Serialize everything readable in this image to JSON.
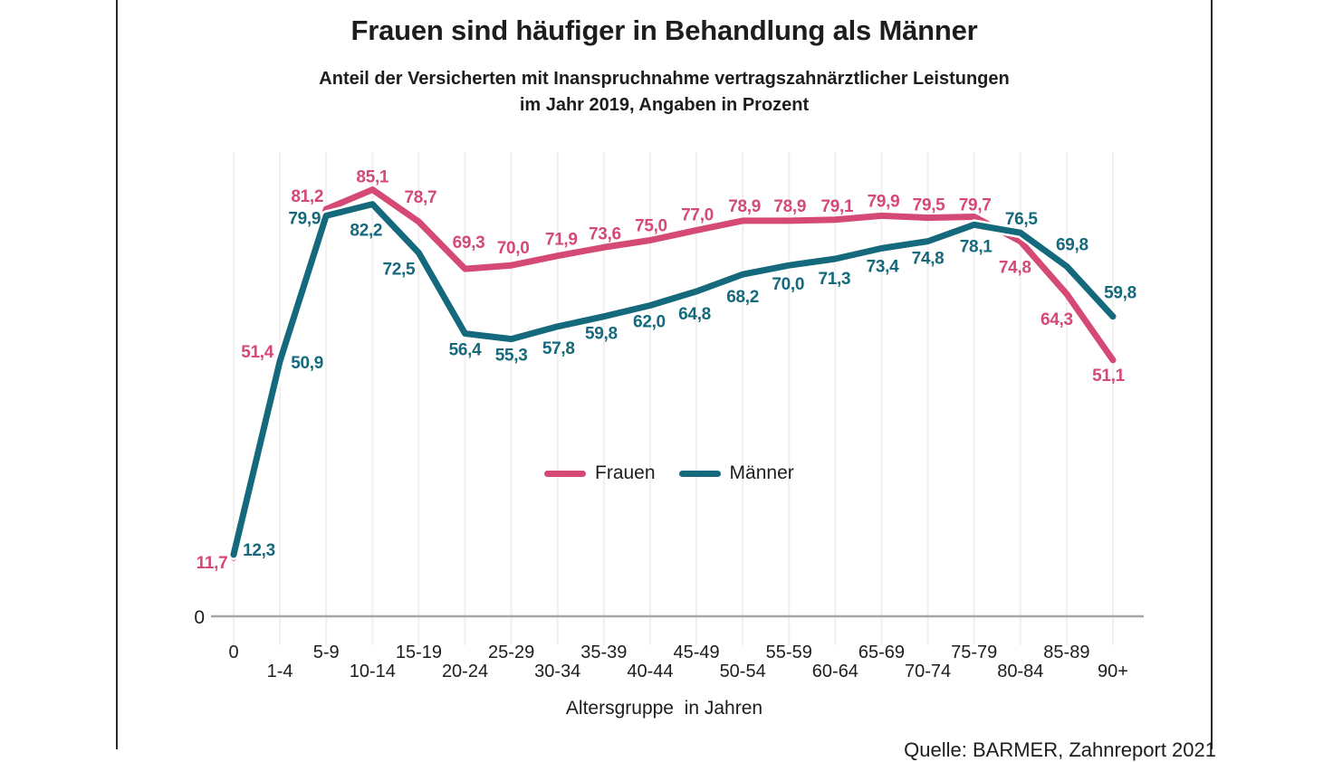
{
  "text": {
    "title": "Frauen sind häufiger in Behandlung als Männer",
    "subtitle_line1": "Anteil der Versicherten mit Inanspruchnahme vertragszahnärztlicher Leistungen",
    "subtitle_line2": "im Jahr 2019, Angaben in Prozent",
    "xaxis_label": "Altersgruppe  in Jahren",
    "source": "Quelle: BARMER, Zahnreport 2021"
  },
  "chart_data": {
    "type": "line",
    "title": "Frauen sind häufiger in Behandlung als Männer",
    "subtitle": "Anteil der Versicherten mit Inanspruchnahme vertragszahnärztlicher Leistungen im Jahr 2019, Angaben in Prozent",
    "categories": [
      "0",
      "1-4",
      "5-9",
      "10-14",
      "15-19",
      "20-24",
      "25-29",
      "30-34",
      "35-39",
      "40-44",
      "45-49",
      "50-54",
      "55-59",
      "60-64",
      "65-69",
      "70-74",
      "75-79",
      "80-84",
      "85-89",
      "90+"
    ],
    "series": [
      {
        "name": "Frauen",
        "color": "#d54975",
        "values": [
          11.7,
          51.4,
          81.2,
          85.1,
          78.7,
          69.3,
          70.0,
          71.9,
          73.6,
          75.0,
          77.0,
          78.9,
          78.9,
          79.1,
          79.9,
          79.5,
          79.7,
          74.8,
          64.3,
          51.1
        ]
      },
      {
        "name": "Männer",
        "color": "#15697c",
        "values": [
          12.3,
          50.9,
          79.9,
          82.2,
          72.5,
          56.4,
          55.3,
          57.8,
          59.8,
          62.0,
          64.8,
          68.2,
          70.0,
          71.3,
          73.4,
          74.8,
          78.1,
          76.5,
          69.8,
          59.8
        ]
      }
    ],
    "xlabel": "Altersgruppe  in Jahren",
    "ylabel": "",
    "ylim": [
      0,
      92
    ],
    "y_baseline_label": "0",
    "grid": "vertical-only",
    "legend_position": "center-middle",
    "value_labels": "every point, one decimal, comma as decimal separator",
    "source": "Quelle: BARMER, Zahnreport 2021",
    "colors": {
      "frauen": "#d54975",
      "maenner": "#15697c",
      "axis": "#a6a6a6",
      "gridline": "#f0eff1",
      "text": "#1d1d1b"
    }
  }
}
